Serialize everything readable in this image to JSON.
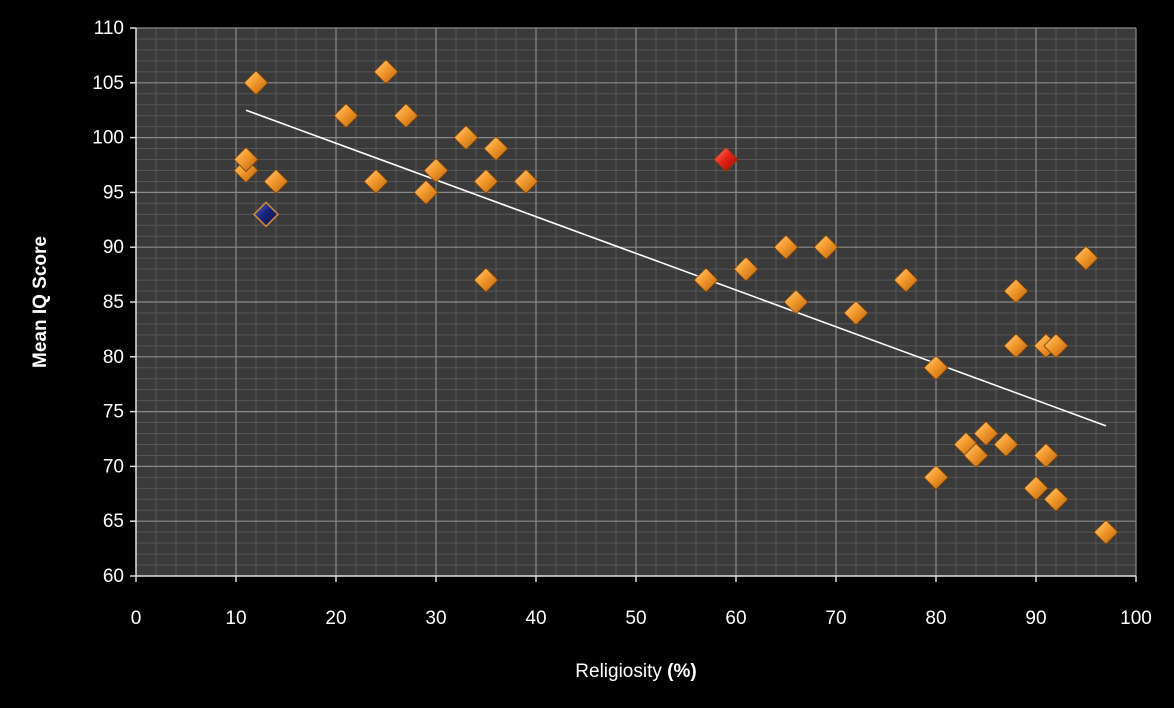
{
  "chart_data": {
    "type": "scatter",
    "title": "",
    "xlabel": "Religiosity",
    "xlabel_unit": "(%)",
    "ylabel": "Mean IQ Score",
    "xlim": [
      0,
      100
    ],
    "ylim": [
      60,
      110
    ],
    "x_ticks": [
      "0",
      "10",
      "20",
      "30",
      "40",
      "50",
      "60",
      "70",
      "80",
      "90",
      "100"
    ],
    "y_ticks": [
      "60",
      "65",
      "70",
      "75",
      "80",
      "85",
      "90",
      "95",
      "100",
      "105",
      "110"
    ],
    "grid": true,
    "legend": "none",
    "background_color": "#000000",
    "plot_area_color": "#3a3a3a",
    "grid_color": "#6e6e6e",
    "marker": "diamond",
    "series": [
      {
        "color": "#f0962a",
        "points": [
          {
            "x": 11,
            "y": 97
          },
          {
            "x": 11,
            "y": 98
          },
          {
            "x": 12,
            "y": 105
          },
          {
            "x": 14,
            "y": 96
          },
          {
            "x": 21,
            "y": 102
          },
          {
            "x": 24,
            "y": 96
          },
          {
            "x": 25,
            "y": 106
          },
          {
            "x": 27,
            "y": 102
          },
          {
            "x": 29,
            "y": 95
          },
          {
            "x": 30,
            "y": 97
          },
          {
            "x": 33,
            "y": 100
          },
          {
            "x": 35,
            "y": 96
          },
          {
            "x": 35,
            "y": 87
          },
          {
            "x": 36,
            "y": 99
          },
          {
            "x": 39,
            "y": 96
          },
          {
            "x": 57,
            "y": 87
          },
          {
            "x": 61,
            "y": 88
          },
          {
            "x": 65,
            "y": 90
          },
          {
            "x": 66,
            "y": 85
          },
          {
            "x": 69,
            "y": 90
          },
          {
            "x": 72,
            "y": 84
          },
          {
            "x": 77,
            "y": 87
          },
          {
            "x": 80,
            "y": 79
          },
          {
            "x": 80,
            "y": 69
          },
          {
            "x": 83,
            "y": 72
          },
          {
            "x": 84,
            "y": 71
          },
          {
            "x": 85,
            "y": 73
          },
          {
            "x": 87,
            "y": 72
          },
          {
            "x": 88,
            "y": 86
          },
          {
            "x": 88,
            "y": 81
          },
          {
            "x": 90,
            "y": 68
          },
          {
            "x": 91,
            "y": 81
          },
          {
            "x": 91,
            "y": 71
          },
          {
            "x": 92,
            "y": 81
          },
          {
            "x": 92,
            "y": 67
          },
          {
            "x": 95,
            "y": 89
          },
          {
            "x": 97,
            "y": 64
          }
        ]
      },
      {
        "color": "#e01e14",
        "points": [
          {
            "x": 59,
            "y": 98
          }
        ]
      },
      {
        "color": "#1a237e",
        "points": [
          {
            "x": 13,
            "y": 93
          }
        ]
      }
    ],
    "trendline": {
      "type": "linear",
      "color": "#ffffff",
      "x": [
        11,
        97
      ],
      "y": [
        102.5,
        73.7
      ]
    }
  }
}
